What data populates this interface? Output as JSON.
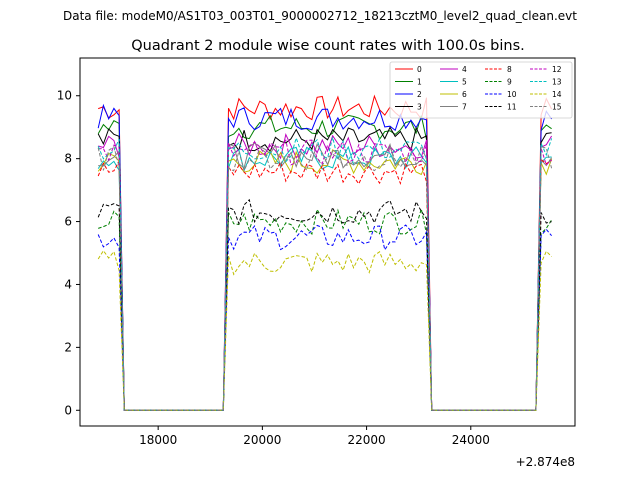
{
  "figure": {
    "header": "Data file: modeM0/AS1T03_003T01_9000002712_18213cztM0_level2_quad_clean.evt"
  },
  "chart_data": {
    "type": "line",
    "title": "Quadrant 2 module wise count rates with 100.0s bins.",
    "xlabel": "",
    "ylabel": "",
    "x_offset_label": "+2.874e8",
    "xlim": [
      16500,
      26000
    ],
    "ylim": [
      -0.5,
      11.2
    ],
    "x_ticks": [
      18000,
      20000,
      22000,
      24000
    ],
    "x_tick_labels": [
      "18000",
      "20000",
      "22000",
      "24000"
    ],
    "y_ticks": [
      0,
      2,
      4,
      6,
      8,
      10
    ],
    "y_tick_labels": [
      "0",
      "2",
      "4",
      "6",
      "8",
      "10"
    ],
    "grid": false,
    "legend_position": "top-right",
    "legend_columns": 4,
    "segments": [
      {
        "start": 16850,
        "end": 17250
      },
      {
        "start": 19350,
        "end": 23150
      },
      {
        "start": 25300,
        "end": 25550
      }
    ],
    "bin_seconds": 100,
    "series": [
      {
        "name": "0",
        "color": "#ff0000",
        "dash": "solid",
        "level": 9.6
      },
      {
        "name": "1",
        "color": "#008000",
        "dash": "solid",
        "level": 9.0
      },
      {
        "name": "2",
        "color": "#0000ff",
        "dash": "solid",
        "level": 9.3
      },
      {
        "name": "3",
        "color": "#000000",
        "dash": "solid",
        "level": 8.6
      },
      {
        "name": "4",
        "color": "#bf00bf",
        "dash": "solid",
        "level": 8.4
      },
      {
        "name": "5",
        "color": "#00bfbf",
        "dash": "solid",
        "level": 8.0
      },
      {
        "name": "6",
        "color": "#bfbf00",
        "dash": "solid",
        "level": 7.9
      },
      {
        "name": "7",
        "color": "#808080",
        "dash": "solid",
        "level": 8.1
      },
      {
        "name": "8",
        "color": "#ff0000",
        "dash": "dashed",
        "level": 7.6
      },
      {
        "name": "9",
        "color": "#008000",
        "dash": "dashed",
        "level": 6.0
      },
      {
        "name": "10",
        "color": "#0000ff",
        "dash": "dashed",
        "level": 5.5
      },
      {
        "name": "11",
        "color": "#000000",
        "dash": "dashed",
        "level": 6.3
      },
      {
        "name": "12",
        "color": "#bf00bf",
        "dash": "dashed",
        "level": 8.2
      },
      {
        "name": "13",
        "color": "#00bfbf",
        "dash": "dashed",
        "level": 8.3
      },
      {
        "name": "14",
        "color": "#bfbf00",
        "dash": "dashed",
        "level": 4.7
      },
      {
        "name": "15",
        "color": "#808080",
        "dash": "dashed",
        "level": 8.0
      }
    ]
  }
}
